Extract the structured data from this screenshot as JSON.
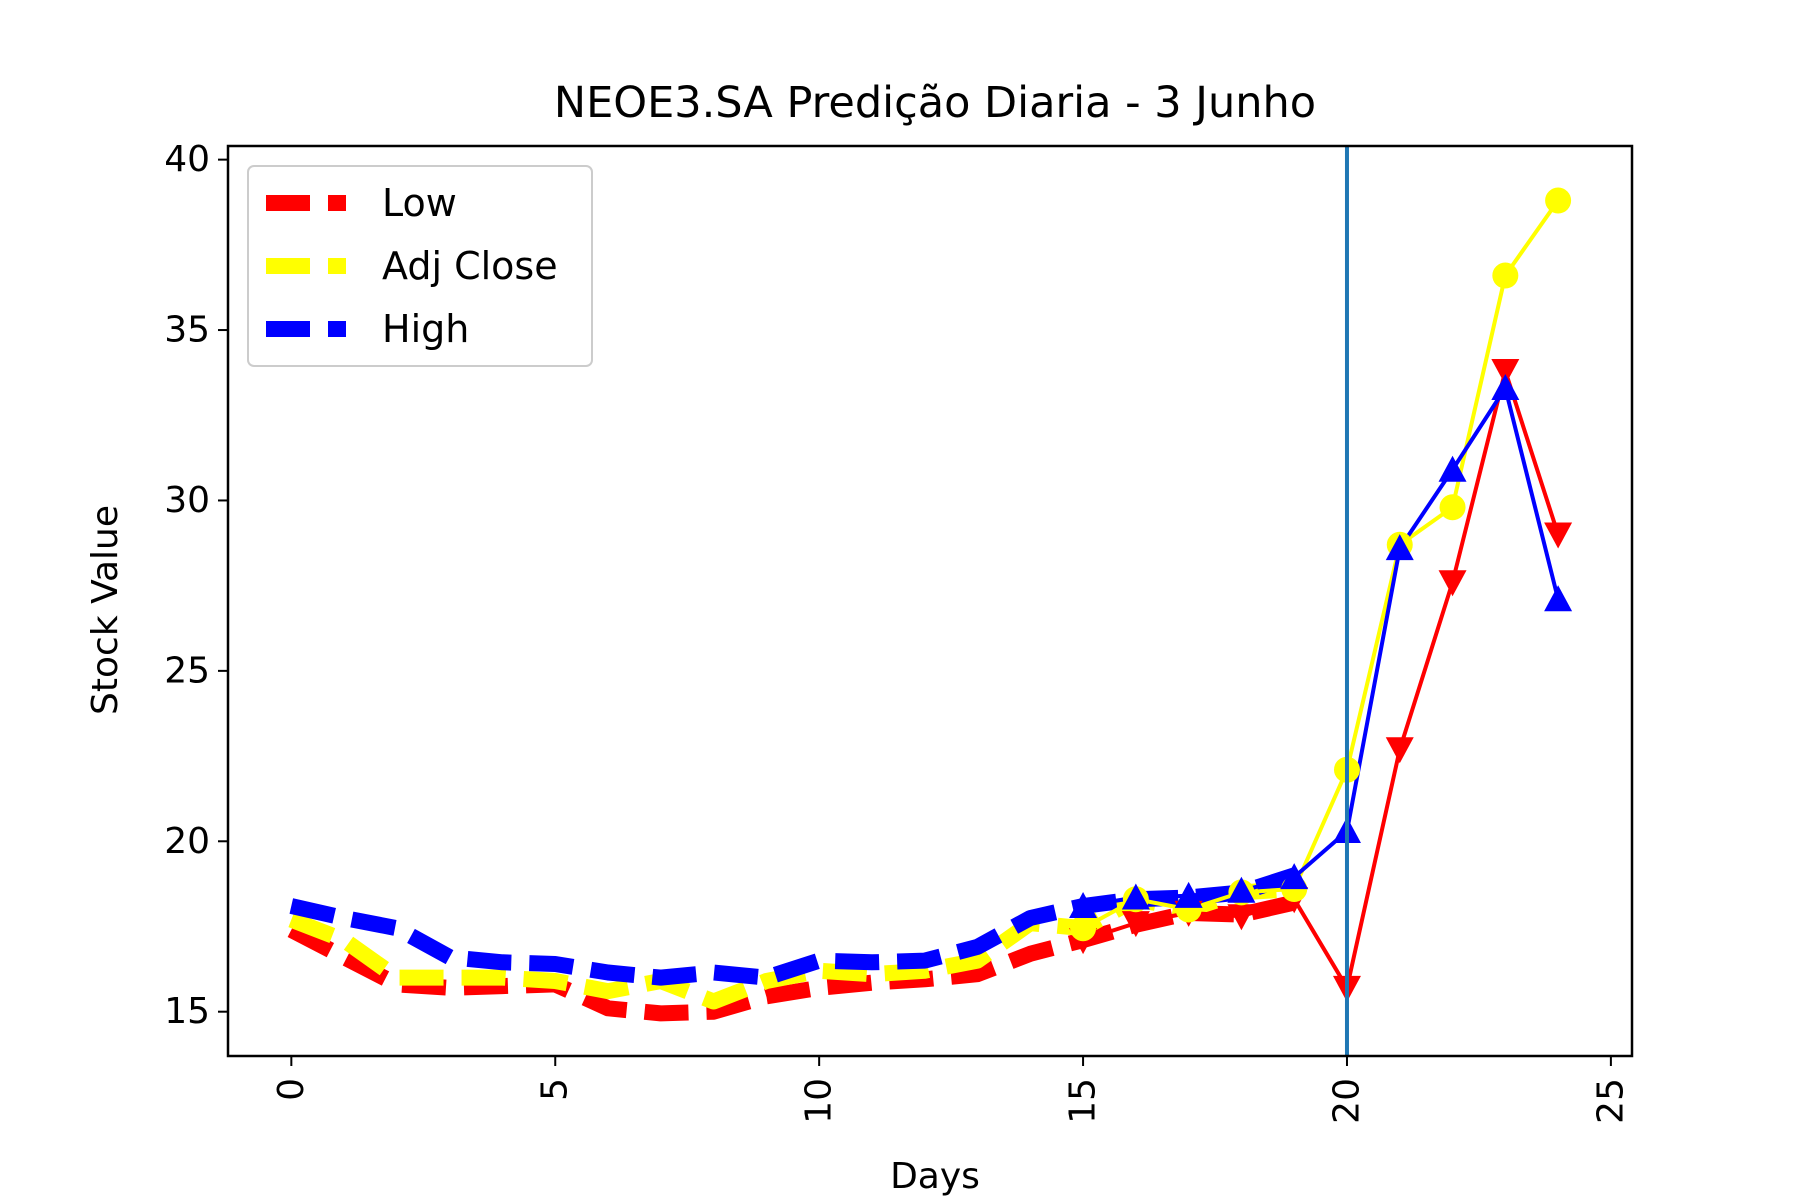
{
  "chart_data": {
    "type": "line",
    "title": "NEOE3.SA Predição Diaria - 3 Junho",
    "xlabel": "Days",
    "ylabel": "Stock Value",
    "xlim": [
      -1.2,
      25.4
    ],
    "ylim": [
      13.7,
      40.4
    ],
    "xticks": [
      0,
      5,
      10,
      15,
      20,
      25
    ],
    "yticks": [
      15,
      20,
      25,
      30,
      35,
      40
    ],
    "grid": false,
    "legend_position": "top-left",
    "vline_x": 20,
    "vline_color": "#1f77b4",
    "history_x": [
      0,
      1,
      2,
      3,
      4,
      5,
      6,
      7,
      8,
      9,
      10,
      11,
      12,
      13,
      14,
      15,
      16,
      17,
      18,
      19
    ],
    "prediction_x": [
      15,
      16,
      17,
      18,
      19,
      20,
      21,
      22,
      23,
      24
    ],
    "series": [
      {
        "name": "Low",
        "color": "#ff0000",
        "marker": "triangle-down",
        "history": [
          17.4,
          16.6,
          15.8,
          15.7,
          15.75,
          15.8,
          15.1,
          14.95,
          15.0,
          15.45,
          15.7,
          15.85,
          15.95,
          16.1,
          16.7,
          17.1,
          17.55,
          17.9,
          17.85,
          18.2
        ],
        "prediction": [
          17.1,
          17.6,
          17.9,
          17.8,
          18.3,
          15.7,
          22.7,
          27.6,
          33.8,
          29.0
        ]
      },
      {
        "name": "Adj Close",
        "color": "#ffff00",
        "marker": "circle",
        "history": [
          17.7,
          17.1,
          16.0,
          16.0,
          16.0,
          15.9,
          15.6,
          15.9,
          15.3,
          15.9,
          16.2,
          16.1,
          16.2,
          16.5,
          17.6,
          17.45,
          18.3,
          18.0,
          18.5,
          18.6
        ],
        "prediction": [
          17.45,
          18.3,
          18.0,
          18.5,
          18.6,
          22.1,
          28.7,
          29.8,
          36.6,
          38.8
        ]
      },
      {
        "name": "High",
        "color": "#0000ff",
        "marker": "triangle-up",
        "history": [
          18.1,
          17.75,
          17.45,
          16.6,
          16.45,
          16.4,
          16.15,
          16.0,
          16.15,
          16.0,
          16.5,
          16.45,
          16.5,
          16.9,
          17.75,
          18.1,
          18.3,
          18.35,
          18.5,
          19.0
        ],
        "prediction": [
          18.1,
          18.35,
          18.4,
          18.55,
          18.95,
          20.3,
          28.6,
          30.9,
          33.3,
          27.1
        ]
      }
    ]
  }
}
